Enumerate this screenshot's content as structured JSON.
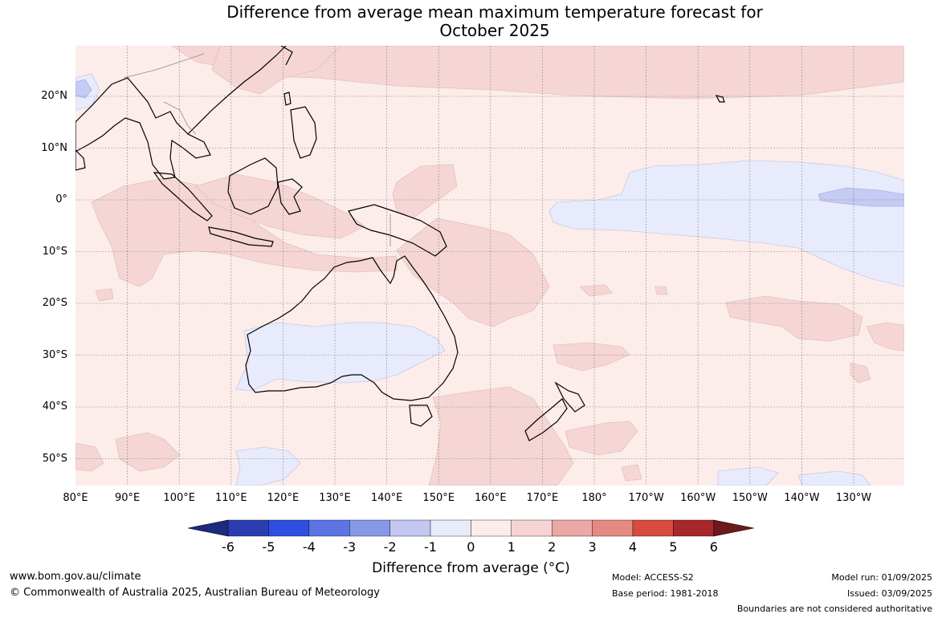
{
  "title_line1": "Difference from average mean maximum temperature forecast for",
  "title_line2": "October 2025",
  "lat_labels": [
    "20°N",
    "10°N",
    "0°",
    "10°S",
    "20°S",
    "30°S",
    "40°S",
    "50°S"
  ],
  "lon_labels": [
    "80°E",
    "90°E",
    "100°E",
    "110°E",
    "120°E",
    "130°E",
    "140°E",
    "150°E",
    "160°E",
    "170°E",
    "180°",
    "170°W",
    "160°W",
    "150°W",
    "140°W",
    "130°W"
  ],
  "colorbar": {
    "ticks": [
      "-6",
      "-5",
      "-4",
      "-3",
      "-2",
      "-1",
      "0",
      "1",
      "2",
      "3",
      "4",
      "5",
      "6"
    ],
    "colors": [
      "#1c2a80",
      "#2b3db0",
      "#2f4fe0",
      "#5c74e4",
      "#8898e8",
      "#c2c8f2",
      "#e8ebfb",
      "#fdeceb",
      "#f5d4d3",
      "#eaa9a4",
      "#e58a82",
      "#d94a3f",
      "#a8272a",
      "#6e1a1a"
    ],
    "label": "Difference from average (°C)"
  },
  "footer": {
    "website": "www.bom.gov.au/climate",
    "copyright": "© Commonwealth of Australia 2025, Australian Bureau of Meteorology",
    "model": "Model: ACCESS-S2",
    "base_period": "Base period: 1981-2018",
    "model_run": "Model run: 01/09/2025",
    "issued": "Issued: 03/09/2025",
    "disclaimer": "Boundaries are not considered authoritative"
  },
  "map_colors": {
    "ocean_base": "#fcecea",
    "anomaly_1_2": "#f5d6d4",
    "anomaly_neg_1_0": "#e8ebfb",
    "anomaly_neg_2_neg_1": "#c5cbf3",
    "coastline": "#000000",
    "borders": "#888888"
  }
}
